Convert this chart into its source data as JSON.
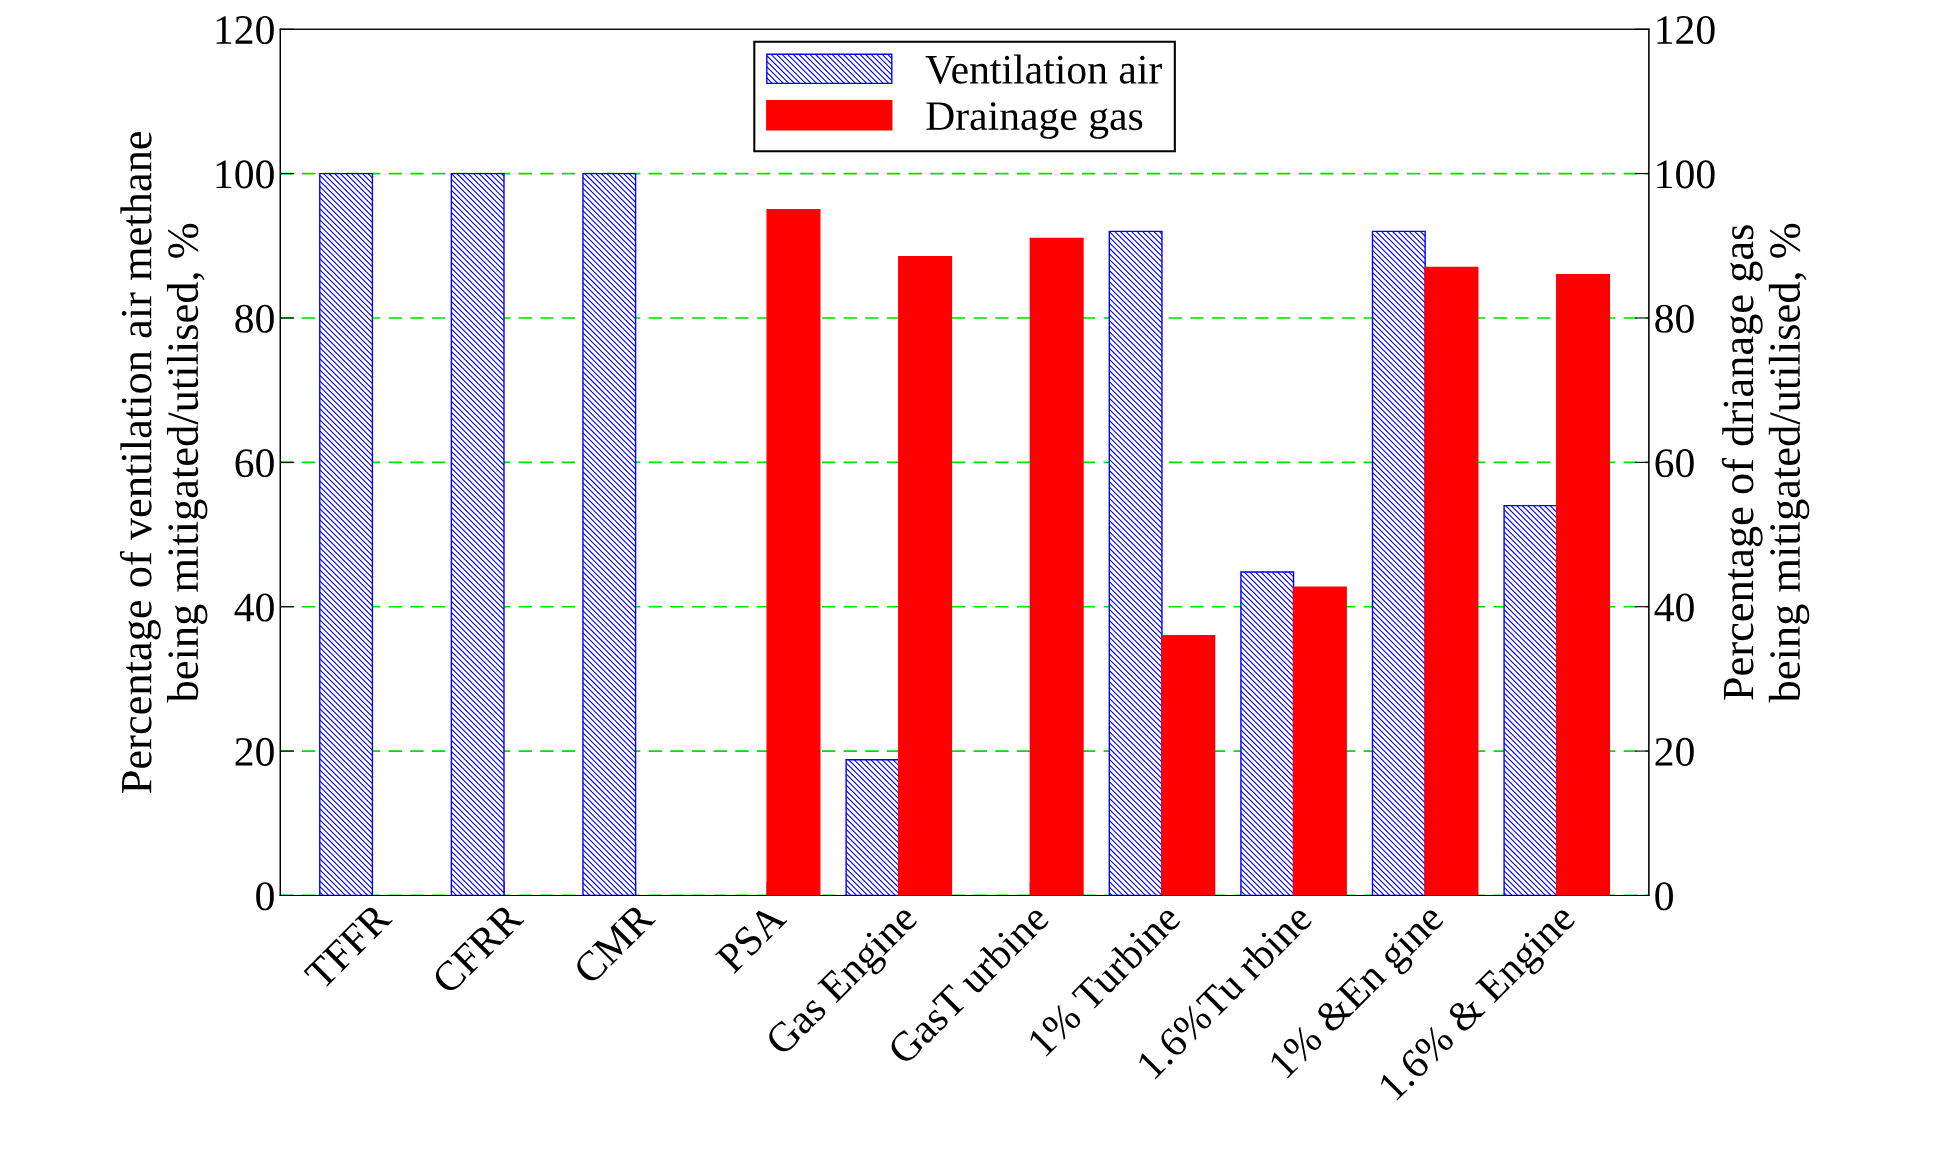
{
  "chart_data": {
    "type": "bar",
    "categories": [
      "TFFR",
      "CFRR",
      "CMR",
      "PSA",
      "Gas Engine",
      "GasT urbine",
      "1% Turbine",
      "1.6%Tu rbine",
      "1% &En gine",
      "1.6% & Engine"
    ],
    "series": [
      {
        "name": "Ventilation air",
        "color": "#0000ff",
        "values": [
          100,
          100,
          100,
          null,
          18.8,
          null,
          92,
          44.8,
          92,
          54
        ]
      },
      {
        "name": "Drainage gas",
        "color": "#ff0000",
        "axis": "y2",
        "values": [
          null,
          null,
          null,
          95,
          88.5,
          91,
          36,
          42.7,
          87,
          86
        ]
      }
    ],
    "ylabel": "Percentage of ventilation air methane\nbeing mitigated/utilised, %",
    "y2label": "Percentage of drianage gas\nbeing mitigated/utilised, %",
    "ylim": [
      0,
      120
    ],
    "yticks": [
      0,
      20,
      40,
      60,
      80,
      100,
      120
    ],
    "y2lim": [
      0,
      120
    ],
    "y2ticks": [
      0,
      20,
      40,
      60,
      80,
      100,
      120
    ],
    "grid": "y",
    "legend": "top"
  }
}
